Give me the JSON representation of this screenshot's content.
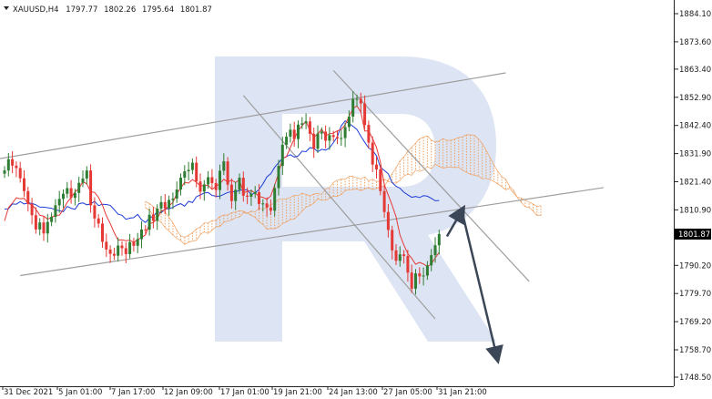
{
  "header": {
    "symbol": "XAUUSD,H4",
    "open": "1797.77",
    "high": "1802.26",
    "low": "1795.64",
    "close": "1801.87",
    "menu_icon": "triangle-down-icon"
  },
  "price_label": "1801.87",
  "colors": {
    "background": "#ffffff",
    "bull_candle": "#2e7d32",
    "bear_candle": "#e53935",
    "tenkan": "#e53935",
    "kijun": "#1e3cd8",
    "cloud": "#f0a060",
    "channel": "#9e9e9e",
    "forecast_arrow": "#3b4656",
    "watermark": "#dde4f3",
    "price_tag_bg": "#000000"
  },
  "chart_data": {
    "type": "candlestick",
    "instrument": "XAUUSD",
    "timeframe": "H4",
    "y_ticks": [
      "1884.10",
      "1873.60",
      "1863.40",
      "1852.90",
      "1842.40",
      "1831.90",
      "1821.40",
      "1810.90",
      "1801.87",
      "1790.20",
      "1779.70",
      "1769.20",
      "1758.70",
      "1748.50"
    ],
    "ylim": [
      1748.5,
      1884.1
    ],
    "x_ticks": [
      "31 Dec 2021",
      "5 Jan 01:00",
      "7 Jan 17:00",
      "12 Jan 09:00",
      "17 Jan 01:00",
      "19 Jan 21:00",
      "24 Jan 13:00",
      "27 Jan 05:00",
      "31 Jan 21:00"
    ],
    "last_price": 1801.87,
    "closes": [
      1825.6,
      1829.8,
      1827.4,
      1826.5,
      1822.7,
      1817.9,
      1813.1,
      1808.9,
      1803.6,
      1806.2,
      1802.1,
      1806.4,
      1808.3,
      1812.6,
      1815.0,
      1816.9,
      1819.0,
      1815.4,
      1817.2,
      1821.0,
      1822.6,
      1825.6,
      1812.6,
      1807.7,
      1805.8,
      1799.0,
      1796.1,
      1794.5,
      1793.8,
      1797.6,
      1796.6,
      1794.4,
      1798.9,
      1797.5,
      1800.0,
      1803.6,
      1803.5,
      1809.1,
      1806.8,
      1811.4,
      1813.8,
      1811.5,
      1814.6,
      1815.1,
      1818.5,
      1822.9,
      1825.3,
      1825.8,
      1828.5,
      1821.5,
      1817.7,
      1820.4,
      1823.1,
      1820.9,
      1818.3,
      1825.5,
      1829.0,
      1820.3,
      1814.2,
      1818.4,
      1822.9,
      1816.2,
      1815.8,
      1816.9,
      1817.5,
      1813.1,
      1813.3,
      1811.8,
      1810.6,
      1819.0,
      1827.3,
      1835.2,
      1838.2,
      1840.8,
      1837.3,
      1842.7,
      1843.2,
      1843.9,
      1839.3,
      1833.7,
      1839.4,
      1840.1,
      1836.7,
      1838.8,
      1838.1,
      1837.6,
      1837.7,
      1841.8,
      1845.7,
      1852.2,
      1852.3,
      1850.6,
      1842.6,
      1836.0,
      1827.8,
      1826.0,
      1817.9,
      1810.1,
      1803.4,
      1795.8,
      1791.9,
      1794.3,
      1793.7,
      1787.5,
      1781.5,
      1787.2,
      1786.1,
      1786.4,
      1790.2,
      1794.0,
      1797.7,
      1801.9
    ],
    "tenkan_sen": [
      1806.8,
      1811.7,
      1813.4,
      1815.4,
      1815.0,
      1815.2,
      1813.3,
      1812.8,
      1811.1,
      1808.9,
      1808.6,
      1807.4,
      1808.1,
      1808.9,
      1808.9,
      1811.1,
      1813.7,
      1815.5,
      1817.6,
      1818.9,
      1821.4,
      1820.6,
      1817.7,
      1817.4,
      1815.6,
      1812.7,
      1808.7,
      1805.8,
      1802.4,
      1799.6,
      1799.7,
      1799.4,
      1799.6,
      1798.8,
      1799.8,
      1800.6,
      1801.6,
      1805.7,
      1806.2,
      1807.6,
      1810.5,
      1810.9,
      1812.4,
      1813.7,
      1817.0,
      1819.0,
      1821.2,
      1820.9,
      1822.2,
      1821.2,
      1819.9,
      1819.9,
      1820.1,
      1818.5,
      1819.7,
      1820.6,
      1822.3,
      1821.3,
      1822.0,
      1821.1,
      1822.1,
      1817.4,
      1817.7,
      1818.1,
      1817.2,
      1815.9,
      1815.6,
      1814.8,
      1816.1,
      1820.2,
      1824.6,
      1830.1,
      1830.7,
      1834.1,
      1837.5,
      1840.4,
      1842.3,
      1844.0,
      1840.5,
      1838.0,
      1839.2,
      1841.0,
      1838.6,
      1839.3,
      1839.5,
      1840.4,
      1840.9,
      1842.7,
      1845.8,
      1848.7,
      1849.7,
      1847.4,
      1840.3,
      1840.4,
      1837.5,
      1834.2,
      1828.7,
      1820.3,
      1816.4,
      1812.6,
      1808.3,
      1801.5,
      1797.8,
      1794.6,
      1792.8,
      1790.6,
      1791.3,
      1790.7,
      1789.8,
      1790.7,
      1793.0,
      1795.0
    ],
    "kijun_sen": [
      1811.2,
      1811.3,
      1813.1,
      1813.0,
      1814.0,
      1813.1,
      1813.5,
      1813.3,
      1812.8,
      1811.9,
      1811.9,
      1811.7,
      1811.5,
      1810.9,
      1810.6,
      1810.2,
      1812.2,
      1811.5,
      1811.1,
      1813.2,
      1813.5,
      1812.8,
      1813.1,
      1814.1,
      1812.5,
      1813.0,
      1812.9,
      1812.6,
      1811.0,
      1809.3,
      1808.9,
      1807.4,
      1807.8,
      1808.0,
      1809.2,
      1807.2,
      1806.2,
      1807.8,
      1808.6,
      1810.2,
      1809.8,
      1811.3,
      1811.3,
      1811.8,
      1812.7,
      1813.2,
      1812.3,
      1814.1,
      1813.6,
      1815.8,
      1816.5,
      1817.2,
      1817.4,
      1816.3,
      1816.0,
      1816.0,
      1816.7,
      1817.4,
      1817.7,
      1817.6,
      1818.2,
      1818.3,
      1818.4,
      1816.5,
      1817.3,
      1818.5,
      1820.6,
      1823.2,
      1824.4,
      1826.8,
      1828.5,
      1830.1,
      1830.8,
      1831.5,
      1830.6,
      1831.0,
      1832.8,
      1832.6,
      1834.1,
      1833.8,
      1832.6,
      1833.5,
      1833.2,
      1834.0,
      1836.0,
      1838.2,
      1842.3,
      1844.1,
      1843.1,
      1842.1,
      1840.9,
      1838.4,
      1836.1,
      1834.0,
      1833.1,
      1831.1,
      1826.8,
      1825.6,
      1824.4,
      1821.1,
      1819.7,
      1819.0,
      1817.5,
      1816.5,
      1815.6,
      1815.9,
      1815.5,
      1816.2,
      1816.0,
      1815.2,
      1814.3,
      1814.4
    ],
    "senkou_a": [
      1814.0,
      1813.3,
      1812.0,
      1811.2,
      1810.6,
      1810.1,
      1808.1,
      1806.1,
      1803.3,
      1801.2,
      1800.7,
      1801.4,
      1802.4,
      1803.8,
      1804.5,
      1806.0,
      1806.0,
      1806.9,
      1807.0,
      1808.4,
      1809.0,
      1809.0,
      1809.8,
      1810.1,
      1810.6,
      1810.4,
      1809.7,
      1808.8,
      1808.1,
      1806.5,
      1805.5,
      1803.7,
      1803.9,
      1803.9,
      1804.5,
      1805.8,
      1806.4,
      1807.3,
      1807.4,
      1808.9,
      1810.4,
      1811.9,
      1812.5,
      1813.4,
      1815.0,
      1814.5,
      1814.5,
      1815.2,
      1816.0,
      1816.0,
      1816.6,
      1818.1,
      1818.4,
      1818.5,
      1818.7,
      1818.1,
      1818.7,
      1819.1,
      1818.5,
      1818.9,
      1819.5,
      1819.7,
      1822.0,
      1824.4,
      1826.7,
      1829.2,
      1830.6,
      1832.8,
      1834.2,
      1835.8,
      1837.4,
      1838.0,
      1838.5,
      1836.9,
      1836.3,
      1836.6,
      1837.5,
      1836.8,
      1836.9,
      1837.3,
      1837.9,
      1838.2,
      1838.9,
      1838.9,
      1838.8,
      1837.4,
      1835.7,
      1833.1,
      1830.4,
      1827.7,
      1825.2,
      1823.3,
      1822.3,
      1819.7,
      1818.2,
      1815.5,
      1813.7,
      1812.1,
      1811.8,
      1810.5,
      1808.8,
      1808.8
    ],
    "senkou_b": [
      1811.6,
      1810.8,
      1808.8,
      1807.3,
      1806.3,
      1804.3,
      1803.1,
      1801.5,
      1800.3,
      1799.4,
      1798.0,
      1798.8,
      1799.3,
      1799.5,
      1801.7,
      1802.7,
      1802.1,
      1803.3,
      1804.6,
      1804.7,
      1806.2,
      1806.7,
      1807.1,
      1808.0,
      1808.2,
      1809.8,
      1809.6,
      1810.5,
      1810.1,
      1811.6,
      1811.1,
      1811.8,
      1812.9,
      1813.3,
      1814.9,
      1815.0,
      1815.0,
      1815.6,
      1816.3,
      1816.2,
      1817.1,
      1816.7,
      1816.1,
      1816.8,
      1817.1,
      1816.6,
      1818.7,
      1819.2,
      1821.1,
      1822.0,
      1822.4,
      1822.3,
      1823.4,
      1823.4,
      1822.8,
      1822.5,
      1823.2,
      1821.7,
      1822.4,
      1821.5,
      1821.5,
      1822.4,
      1821.5,
      1821.1,
      1820.8,
      1822.0,
      1823.6,
      1824.2,
      1823.8,
      1825.7,
      1825.2,
      1825.8,
      1827.0,
      1826.3,
      1827.9,
      1827.1,
      1826.5,
      1826.8,
      1826.8,
      1826.7,
      1826.8,
      1825.7,
      1824.9,
      1824.2,
      1823.8,
      1823.5,
      1822.5,
      1822.7,
      1822.2,
      1821.5,
      1820.5,
      1819.6,
      1818.4,
      1818.9,
      1817.2,
      1815.6,
      1815.3,
      1814.6,
      1813.8,
      1813.1,
      1812.2,
      1812.5
    ]
  }
}
